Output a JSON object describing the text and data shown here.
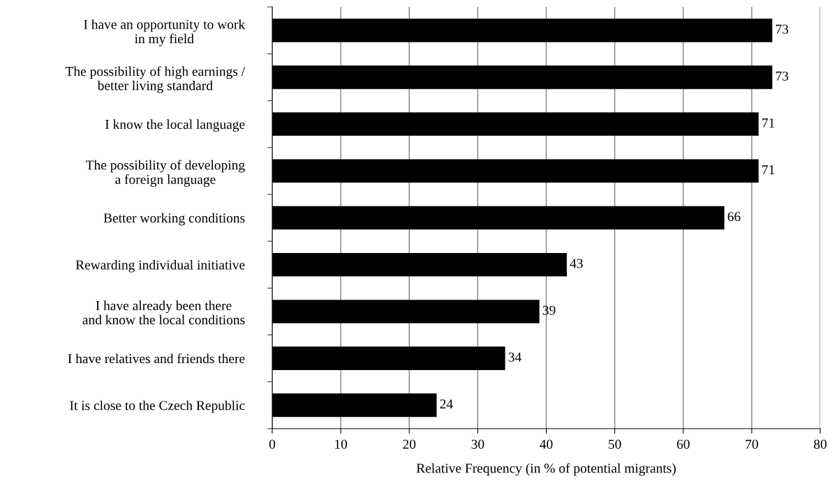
{
  "chart_data": {
    "type": "bar",
    "orientation": "horizontal",
    "categories": [
      "I have an opportunity to work\nin my field",
      "The possibility of high earnings /\nbetter living standard",
      "I know the local language",
      "The possibility of developing\na foreign language",
      "Better working conditions",
      "Rewarding individual initiative",
      "I have already been there\nand know the local conditions",
      "I have relatives and friends there",
      "It is close to the Czech Republic"
    ],
    "values": [
      73,
      73,
      71,
      71,
      66,
      43,
      39,
      34,
      24
    ],
    "color": "#000000",
    "xlabel": "Relative Frequency (in % of potential migrants)",
    "xlim": [
      0,
      80
    ],
    "xticks": [
      0,
      10,
      20,
      30,
      40,
      50,
      60,
      70,
      80
    ],
    "grid": "x",
    "data_labels": true
  }
}
